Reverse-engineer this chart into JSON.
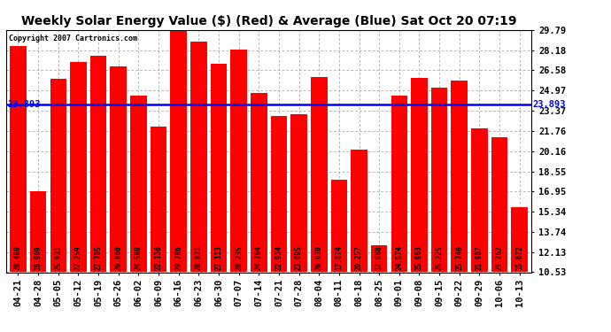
{
  "title": "Weekly Solar Energy Value ($) (Red) & Average (Blue) Sat Oct 20 07:19",
  "copyright": "Copyright 2007 Cartronics.com",
  "categories": [
    "04-21",
    "04-28",
    "05-05",
    "05-12",
    "05-19",
    "05-26",
    "06-02",
    "06-09",
    "06-16",
    "06-23",
    "06-30",
    "07-07",
    "07-14",
    "07-21",
    "07-28",
    "08-04",
    "08-11",
    "08-18",
    "08-25",
    "09-01",
    "09-08",
    "09-15",
    "09-22",
    "09-29",
    "10-06",
    "10-13"
  ],
  "values": [
    28.48,
    16.969,
    25.931,
    27.259,
    27.705,
    26.86,
    24.58,
    22.136,
    29.786,
    28.831,
    27.113,
    28.235,
    24.764,
    22.934,
    23.095,
    26.03,
    17.874,
    20.257,
    12.668,
    24.574,
    25.963,
    25.225,
    25.74,
    21.987,
    21.262,
    15.672
  ],
  "average": 23.893,
  "bar_color": "#FF0000",
  "avg_line_color": "#0000FF",
  "background_color": "#FFFFFF",
  "plot_bg_color": "#FFFFFF",
  "grid_color": "#999999",
  "yticks": [
    10.53,
    12.13,
    13.74,
    15.34,
    16.95,
    18.55,
    20.16,
    21.76,
    23.37,
    24.97,
    26.58,
    28.18,
    29.79
  ],
  "ymin": 10.53,
  "ymax": 29.79,
  "title_fontsize": 10,
  "tick_fontsize": 7.5,
  "bar_label_fontsize": 5.5,
  "copyright_fontsize": 6,
  "avg_label": "23.893",
  "text_color": "#000000",
  "bar_label_color": "#000000",
  "bar_width": 0.82
}
